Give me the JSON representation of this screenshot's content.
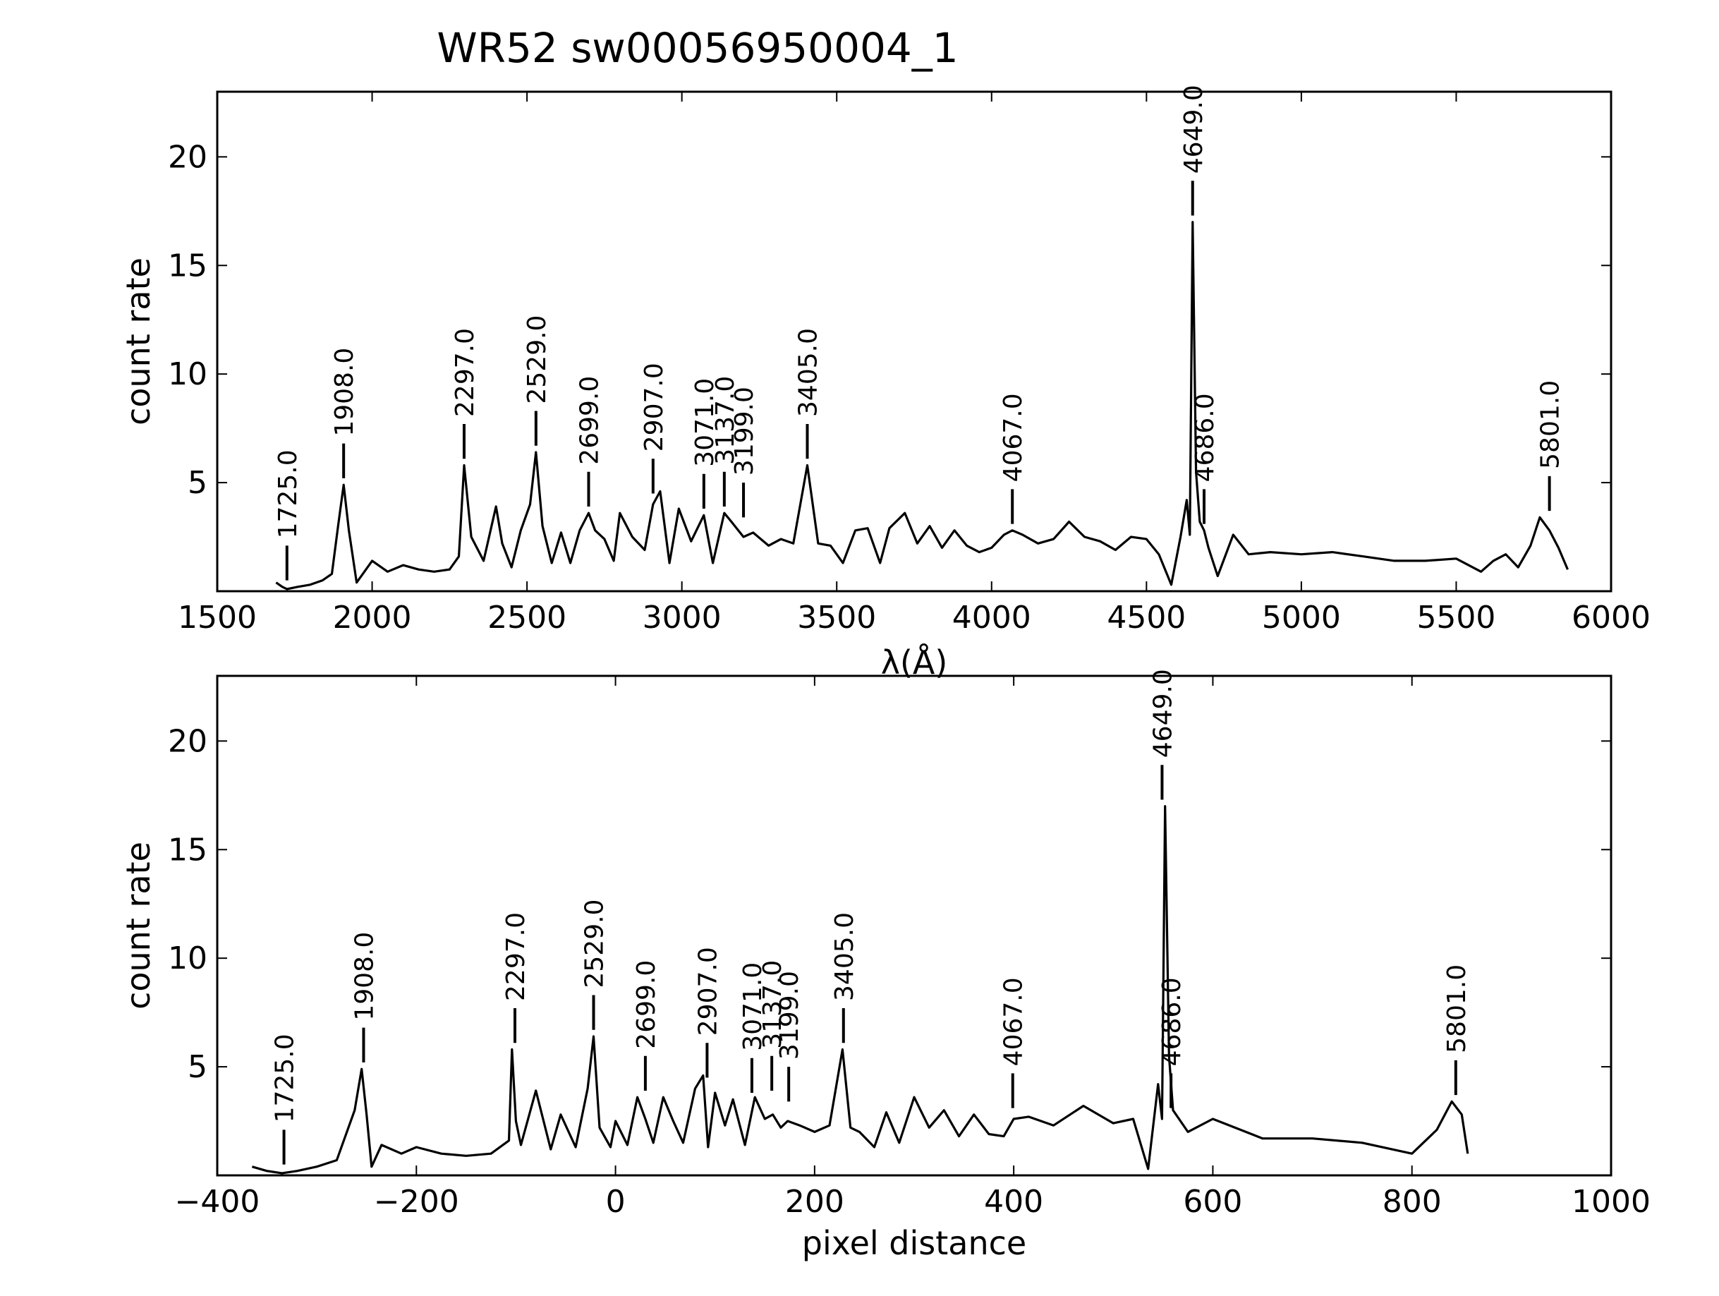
{
  "chart_data": [
    {
      "type": "line",
      "title": "WR52  sw00056950004_1",
      "xlabel": "λ(Å)",
      "ylabel": "count rate",
      "xlim": [
        1500,
        6000
      ],
      "ylim": [
        0,
        23
      ],
      "x_ticks": [
        "1500",
        "2000",
        "2500",
        "3000",
        "3500",
        "4000",
        "4500",
        "5000",
        "5500",
        "6000"
      ],
      "y_ticks": [
        "5",
        "10",
        "15",
        "20"
      ],
      "grid": false,
      "series": [
        {
          "x": [
            1690,
            1710,
            1725,
            1760,
            1800,
            1840,
            1870,
            1890,
            1908,
            1925,
            1950,
            2000,
            2050,
            2100,
            2150,
            2200,
            2250,
            2280,
            2297,
            2320,
            2360,
            2400,
            2420,
            2450,
            2480,
            2510,
            2529,
            2550,
            2580,
            2610,
            2640,
            2670,
            2699,
            2720,
            2750,
            2780,
            2800,
            2840,
            2880,
            2907,
            2930,
            2960,
            2990,
            3030,
            3071,
            3100,
            3137,
            3160,
            3199,
            3230,
            3280,
            3320,
            3360,
            3405,
            3440,
            3480,
            3520,
            3560,
            3600,
            3640,
            3670,
            3720,
            3760,
            3800,
            3840,
            3880,
            3920,
            3960,
            4000,
            4040,
            4067,
            4100,
            4150,
            4200,
            4250,
            4300,
            4350,
            4400,
            4450,
            4500,
            4540,
            4580,
            4610,
            4630,
            4640,
            4649,
            4660,
            4672,
            4686,
            4700,
            4730,
            4780,
            4830,
            4900,
            5000,
            5100,
            5200,
            5300,
            5400,
            5500,
            5580,
            5620,
            5660,
            5700,
            5740,
            5770,
            5801,
            5830,
            5860
          ],
          "y": [
            0.4,
            0.2,
            0.1,
            0.2,
            0.3,
            0.5,
            0.8,
            3.0,
            4.9,
            2.8,
            0.4,
            1.4,
            0.9,
            1.2,
            1.0,
            0.9,
            1.0,
            1.6,
            5.8,
            2.5,
            1.4,
            3.9,
            2.2,
            1.1,
            2.8,
            4.0,
            6.4,
            3.0,
            1.3,
            2.7,
            1.3,
            2.8,
            3.6,
            2.8,
            2.4,
            1.4,
            3.6,
            2.5,
            1.9,
            4.0,
            4.6,
            1.3,
            3.8,
            2.3,
            3.5,
            1.3,
            3.6,
            3.2,
            2.5,
            2.7,
            2.1,
            2.4,
            2.2,
            5.8,
            2.2,
            2.1,
            1.3,
            2.8,
            2.9,
            1.3,
            2.9,
            3.6,
            2.2,
            3.0,
            2.0,
            2.8,
            2.1,
            1.8,
            2.0,
            2.6,
            2.8,
            2.6,
            2.2,
            2.4,
            3.2,
            2.5,
            2.3,
            1.9,
            2.5,
            2.4,
            1.7,
            0.3,
            2.5,
            4.2,
            2.6,
            17.0,
            5.5,
            3.2,
            2.8,
            2.0,
            0.7,
            2.6,
            1.7,
            1.8,
            1.7,
            1.8,
            1.6,
            1.4,
            1.4,
            1.5,
            0.9,
            1.4,
            1.7,
            1.1,
            2.1,
            3.4,
            2.8,
            2.0,
            1.0
          ]
        }
      ],
      "line_markers": [
        {
          "label": "1725.0",
          "x": 1725,
          "y0": 0.5,
          "y1": 2.1
        },
        {
          "label": "1908.0",
          "x": 1908,
          "y0": 5.2,
          "y1": 6.8
        },
        {
          "label": "2297.0",
          "x": 2297,
          "y0": 6.1,
          "y1": 7.7
        },
        {
          "label": "2529.0",
          "x": 2529,
          "y0": 6.7,
          "y1": 8.3
        },
        {
          "label": "2699.0",
          "x": 2699,
          "y0": 3.9,
          "y1": 5.5
        },
        {
          "label": "2907.0",
          "x": 2907,
          "y0": 4.5,
          "y1": 6.1
        },
        {
          "label": "3071.0",
          "x": 3071,
          "y0": 3.8,
          "y1": 5.4
        },
        {
          "label": "3137.0",
          "x": 3137,
          "y0": 3.9,
          "y1": 5.5
        },
        {
          "label": "3199.0",
          "x": 3199,
          "y0": 3.4,
          "y1": 5.0
        },
        {
          "label": "3405.0",
          "x": 3405,
          "y0": 6.1,
          "y1": 7.7
        },
        {
          "label": "4067.0",
          "x": 4067,
          "y0": 3.1,
          "y1": 4.7
        },
        {
          "label": "4649.0",
          "x": 4649,
          "y0": 17.3,
          "y1": 18.9
        },
        {
          "label": "4686.0",
          "x": 4686,
          "y0": 3.1,
          "y1": 4.7
        },
        {
          "label": "5801.0",
          "x": 5801,
          "y0": 3.7,
          "y1": 5.3
        }
      ]
    },
    {
      "type": "line",
      "title": "",
      "xlabel": "pixel distance",
      "ylabel": "count rate",
      "xlim": [
        -400,
        1000
      ],
      "ylim": [
        0,
        23
      ],
      "x_ticks": [
        "−400",
        "−200",
        "0",
        "200",
        "400",
        "600",
        "800",
        "1000"
      ],
      "y_ticks": [
        "5",
        "10",
        "15",
        "20"
      ],
      "grid": false,
      "series": [
        {
          "x": [
            -365,
            -350,
            -335,
            -320,
            -300,
            -280,
            -262,
            -255,
            -250,
            -245,
            -235,
            -215,
            -200,
            -175,
            -150,
            -125,
            -107,
            -104,
            -100,
            -95,
            -80,
            -65,
            -55,
            -40,
            -28,
            -22,
            -16,
            -5,
            0,
            12,
            22,
            30,
            38,
            48,
            58,
            68,
            80,
            88,
            93,
            100,
            110,
            118,
            130,
            140,
            150,
            158,
            166,
            173,
            185,
            200,
            215,
            228,
            236,
            245,
            260,
            272,
            285,
            300,
            315,
            330,
            345,
            360,
            375,
            390,
            400,
            415,
            440,
            470,
            500,
            520,
            535,
            545,
            549,
            552,
            556,
            560,
            575,
            600,
            650,
            700,
            750,
            800,
            825,
            840,
            850,
            856
          ],
          "y": [
            0.4,
            0.2,
            0.1,
            0.2,
            0.4,
            0.7,
            3.0,
            4.9,
            2.8,
            0.4,
            1.4,
            1.0,
            1.3,
            1.0,
            0.9,
            1.0,
            1.6,
            5.8,
            2.5,
            1.4,
            3.9,
            1.2,
            2.8,
            1.3,
            4.0,
            6.4,
            2.2,
            1.3,
            2.5,
            1.4,
            3.6,
            2.6,
            1.5,
            3.6,
            2.5,
            1.5,
            4.0,
            4.6,
            1.3,
            3.8,
            2.3,
            3.5,
            1.4,
            3.6,
            2.6,
            2.8,
            2.2,
            2.5,
            2.3,
            2.0,
            2.3,
            5.8,
            2.2,
            2.0,
            1.3,
            2.9,
            1.5,
            3.6,
            2.2,
            3.0,
            1.8,
            2.8,
            1.9,
            1.8,
            2.6,
            2.7,
            2.3,
            3.2,
            2.4,
            2.6,
            0.3,
            4.2,
            2.6,
            17.0,
            5.5,
            3.0,
            2.0,
            2.6,
            1.7,
            1.7,
            1.5,
            1.0,
            2.1,
            3.4,
            2.8,
            1.0
          ]
        }
      ],
      "line_markers": [
        {
          "label": "1725.0",
          "x": -333,
          "y0": 0.5,
          "y1": 2.1
        },
        {
          "label": "1908.0",
          "x": -253,
          "y0": 5.2,
          "y1": 6.8
        },
        {
          "label": "2297.0",
          "x": -101,
          "y0": 6.1,
          "y1": 7.7
        },
        {
          "label": "2529.0",
          "x": -22,
          "y0": 6.7,
          "y1": 8.3
        },
        {
          "label": "2699.0",
          "x": 30,
          "y0": 3.9,
          "y1": 5.5
        },
        {
          "label": "2907.0",
          "x": 92,
          "y0": 4.5,
          "y1": 6.1
        },
        {
          "label": "3071.0",
          "x": 137,
          "y0": 3.8,
          "y1": 5.4
        },
        {
          "label": "3137.0",
          "x": 157,
          "y0": 3.9,
          "y1": 5.5
        },
        {
          "label": "3199.0",
          "x": 174,
          "y0": 3.4,
          "y1": 5.0
        },
        {
          "label": "3405.0",
          "x": 229,
          "y0": 6.1,
          "y1": 7.7
        },
        {
          "label": "4067.0",
          "x": 399,
          "y0": 3.1,
          "y1": 4.7
        },
        {
          "label": "4649.0",
          "x": 549,
          "y0": 17.3,
          "y1": 18.9
        },
        {
          "label": "4686.0",
          "x": 558,
          "y0": 3.1,
          "y1": 4.7
        },
        {
          "label": "5801.0",
          "x": 844,
          "y0": 3.7,
          "y1": 5.3
        }
      ]
    }
  ]
}
